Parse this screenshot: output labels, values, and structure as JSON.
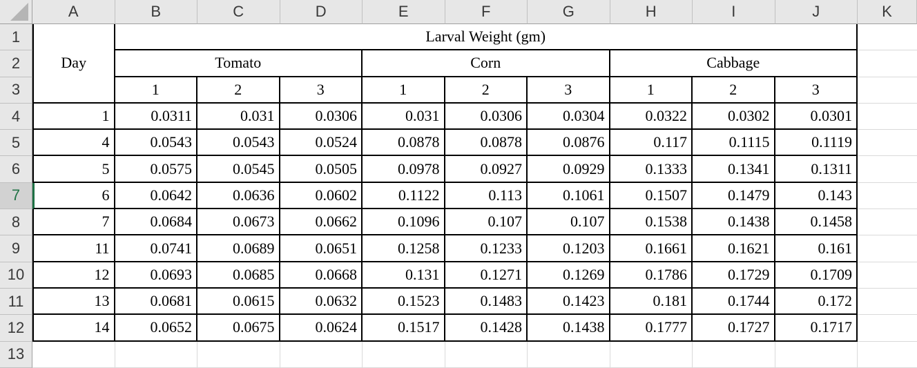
{
  "sheet": {
    "columns": [
      "A",
      "B",
      "C",
      "D",
      "E",
      "F",
      "G",
      "H",
      "I",
      "J",
      "K"
    ],
    "rows": [
      "1",
      "2",
      "3",
      "4",
      "5",
      "6",
      "7",
      "8",
      "9",
      "10",
      "11",
      "12",
      "13"
    ],
    "selected_row": "7",
    "selected_cell": "A7",
    "colors": {
      "accent_green": "#217346",
      "header_bg": "#e7e7e7",
      "selected_header_bg": "#d2d2d2",
      "grid_line": "#d9d9d9",
      "table_border": "#000000"
    }
  },
  "table": {
    "title": "Larval Weight (gm)",
    "day_header": "Day",
    "groups": [
      "Tomato",
      "Corn",
      "Cabbage"
    ],
    "replicate_headers": [
      "1",
      "2",
      "3",
      "1",
      "2",
      "3",
      "1",
      "2",
      "3"
    ],
    "rows": [
      {
        "day": "1",
        "values": [
          "0.0311",
          "0.031",
          "0.0306",
          "0.031",
          "0.0306",
          "0.0304",
          "0.0322",
          "0.0302",
          "0.0301"
        ]
      },
      {
        "day": "4",
        "values": [
          "0.0543",
          "0.0543",
          "0.0524",
          "0.0878",
          "0.0878",
          "0.0876",
          "0.117",
          "0.1115",
          "0.1119"
        ]
      },
      {
        "day": "5",
        "values": [
          "0.0575",
          "0.0545",
          "0.0505",
          "0.0978",
          "0.0927",
          "0.0929",
          "0.1333",
          "0.1341",
          "0.1311"
        ]
      },
      {
        "day": "6",
        "values": [
          "0.0642",
          "0.0636",
          "0.0602",
          "0.1122",
          "0.113",
          "0.1061",
          "0.1507",
          "0.1479",
          "0.143"
        ]
      },
      {
        "day": "7",
        "values": [
          "0.0684",
          "0.0673",
          "0.0662",
          "0.1096",
          "0.107",
          "0.107",
          "0.1538",
          "0.1438",
          "0.1458"
        ]
      },
      {
        "day": "11",
        "values": [
          "0.0741",
          "0.0689",
          "0.0651",
          "0.1258",
          "0.1233",
          "0.1203",
          "0.1661",
          "0.1621",
          "0.161"
        ]
      },
      {
        "day": "12",
        "values": [
          "0.0693",
          "0.0685",
          "0.0668",
          "0.131",
          "0.1271",
          "0.1269",
          "0.1786",
          "0.1729",
          "0.1709"
        ]
      },
      {
        "day": "13",
        "values": [
          "0.0681",
          "0.0615",
          "0.0632",
          "0.1523",
          "0.1483",
          "0.1423",
          "0.181",
          "0.1744",
          "0.172"
        ]
      },
      {
        "day": "14",
        "values": [
          "0.0652",
          "0.0675",
          "0.0624",
          "0.1517",
          "0.1428",
          "0.1438",
          "0.1777",
          "0.1727",
          "0.1717"
        ]
      }
    ]
  }
}
